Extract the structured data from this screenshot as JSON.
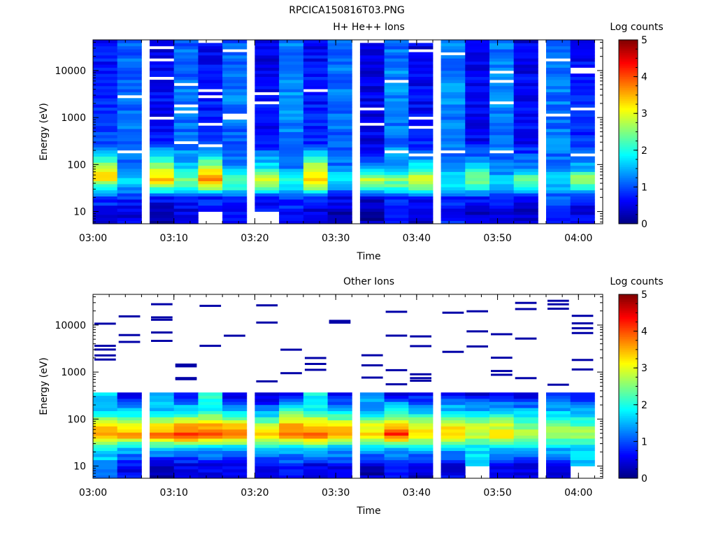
{
  "figure_title": "RPCICA150816T03.PNG",
  "chart_data": [
    {
      "type": "heatmap",
      "title": "H+ He++ Ions",
      "xlabel": "Time",
      "ylabel": "Energy (eV)",
      "x_ticks": [
        "03:00",
        "03:10",
        "03:20",
        "03:30",
        "03:40",
        "03:50",
        "04:00"
      ],
      "x_range": [
        "03:00",
        "04:03"
      ],
      "y_scale": "log",
      "y_ticks": [
        "10",
        "100",
        "1000",
        "10000"
      ],
      "ylim": [
        5.5,
        45000
      ],
      "colorbar": {
        "label": "Log counts",
        "min": 0,
        "max": 5,
        "ticks": [
          "0",
          "1",
          "2",
          "3",
          "4",
          "5"
        ]
      },
      "time_columns": [
        "03:00",
        "03:03",
        "03:07",
        "03:10",
        "03:13",
        "03:16",
        "03:20",
        "03:23",
        "03:26",
        "03:29",
        "03:33",
        "03:36",
        "03:39",
        "03:43",
        "03:46",
        "03:49",
        "03:52",
        "03:56",
        "03:59"
      ],
      "energy_bands_log_counts": [
        {
          "energy_ev": 10,
          "values": [
            0.6,
            0.5,
            0.3,
            0.5,
            null,
            0.6,
            null,
            0.7,
            0.5,
            0.3,
            0.2,
            0.6,
            0.4,
            0.7,
            0.4,
            0.5,
            0.3,
            0.8,
            0.5
          ]
        },
        {
          "energy_ev": 20,
          "values": [
            0.9,
            0.8,
            0.7,
            0.9,
            0.8,
            1.0,
            0.6,
            0.9,
            0.8,
            0.6,
            0.4,
            0.8,
            0.7,
            0.8,
            0.7,
            0.8,
            0.6,
            1.0,
            0.8
          ]
        },
        {
          "energy_ev": 35,
          "values": [
            2.0,
            1.6,
            2.6,
            2.0,
            3.0,
            2.1,
            2.7,
            1.9,
            2.8,
            1.6,
            2.5,
            2.3,
            2.7,
            1.8,
            2.2,
            1.4,
            2.2,
            1.6,
            2.2
          ]
        },
        {
          "energy_ev": 50,
          "values": [
            3.4,
            1.8,
            3.4,
            2.5,
            3.8,
            2.3,
            3.0,
            2.3,
            3.5,
            2.0,
            3.0,
            2.5,
            3.2,
            1.9,
            2.6,
            1.6,
            2.5,
            1.8,
            2.7
          ]
        },
        {
          "energy_ev": 80,
          "values": [
            2.8,
            1.2,
            2.8,
            1.7,
            2.9,
            1.4,
            1.9,
            1.3,
            3.0,
            1.2,
            1.4,
            1.5,
            1.9,
            1.3,
            1.8,
            1.1,
            1.4,
            1.2,
            1.6
          ]
        },
        {
          "energy_ev": 300,
          "values": [
            0.9,
            1.1,
            0.7,
            1.1,
            0.8,
            1.1,
            0.7,
            1.2,
            0.8,
            1.1,
            0.5,
            1.2,
            0.7,
            1.2,
            0.6,
            1.2,
            0.6,
            1.2,
            0.8
          ]
        },
        {
          "energy_ev": 3000,
          "values": [
            0.8,
            1.2,
            0.6,
            1.2,
            0.7,
            1.2,
            0.6,
            1.3,
            0.7,
            1.2,
            0.5,
            1.3,
            0.6,
            1.3,
            0.6,
            1.3,
            0.6,
            1.2,
            0.7
          ]
        },
        {
          "energy_ev": 30000,
          "values": [
            0.7,
            1.1,
            0.5,
            1.1,
            0.6,
            1.1,
            0.5,
            1.2,
            0.6,
            1.1,
            0.4,
            1.2,
            0.5,
            1.2,
            0.5,
            1.2,
            0.5,
            1.1,
            0.6
          ]
        }
      ]
    },
    {
      "type": "heatmap",
      "title": "Other Ions",
      "xlabel": "Time",
      "ylabel": "Energy (eV)",
      "x_ticks": [
        "03:00",
        "03:10",
        "03:20",
        "03:30",
        "03:40",
        "03:50",
        "04:00"
      ],
      "x_range": [
        "03:00",
        "04:03"
      ],
      "y_scale": "log",
      "y_ticks": [
        "10",
        "100",
        "1000",
        "10000"
      ],
      "ylim": [
        5.5,
        45000
      ],
      "colorbar": {
        "label": "Log counts",
        "min": 0,
        "max": 5,
        "ticks": [
          "0",
          "1",
          "2",
          "3",
          "4",
          "5"
        ]
      },
      "time_columns": [
        "03:00",
        "03:03",
        "03:07",
        "03:10",
        "03:13",
        "03:16",
        "03:20",
        "03:23",
        "03:26",
        "03:29",
        "03:33",
        "03:36",
        "03:39",
        "03:43",
        "03:46",
        "03:49",
        "03:52",
        "03:56",
        "03:59"
      ],
      "energy_bands_log_counts": [
        {
          "energy_ev": 10,
          "values": [
            1.4,
            0.6,
            0.3,
            0.5,
            0.5,
            0.5,
            0.4,
            0.8,
            0.5,
            0.6,
            0.3,
            0.6,
            0.4,
            0.5,
            null,
            0.6,
            0.4,
            0.5,
            null
          ]
        },
        {
          "energy_ev": 25,
          "values": [
            1.8,
            1.6,
            1.8,
            1.6,
            1.7,
            1.6,
            1.8,
            1.6,
            1.8,
            1.6,
            1.7,
            1.6,
            1.7,
            1.6,
            1.7,
            1.6,
            1.7,
            1.6,
            1.7
          ]
        },
        {
          "energy_ev": 45,
          "values": [
            3.7,
            3.8,
            3.8,
            4.2,
            4.1,
            3.9,
            3.5,
            4.1,
            4.1,
            3.8,
            3.5,
            4.2,
            3.5,
            3.6,
            3.0,
            3.2,
            2.9,
            2.8,
            2.7
          ]
        },
        {
          "energy_ev": 80,
          "values": [
            3.0,
            2.9,
            3.0,
            3.3,
            3.3,
            3.1,
            2.6,
            3.4,
            3.3,
            3.0,
            2.8,
            3.3,
            2.8,
            2.9,
            2.6,
            2.7,
            2.4,
            2.4,
            2.3
          ]
        },
        {
          "energy_ev": 150,
          "values": [
            1.6,
            1.6,
            1.5,
            1.8,
            2.0,
            1.7,
            1.3,
            2.4,
            1.9,
            1.6,
            1.5,
            1.9,
            1.6,
            1.7,
            1.6,
            1.7,
            1.5,
            1.6,
            1.5
          ]
        },
        {
          "energy_ev": 350,
          "values": [
            null,
            0.4,
            null,
            0.6,
            null,
            0.4,
            0.3,
            0.5,
            null,
            0.5,
            null,
            0.6,
            0.5,
            0.6,
            0.5,
            0.5,
            0.4,
            0.6,
            0.5
          ]
        }
      ]
    }
  ]
}
